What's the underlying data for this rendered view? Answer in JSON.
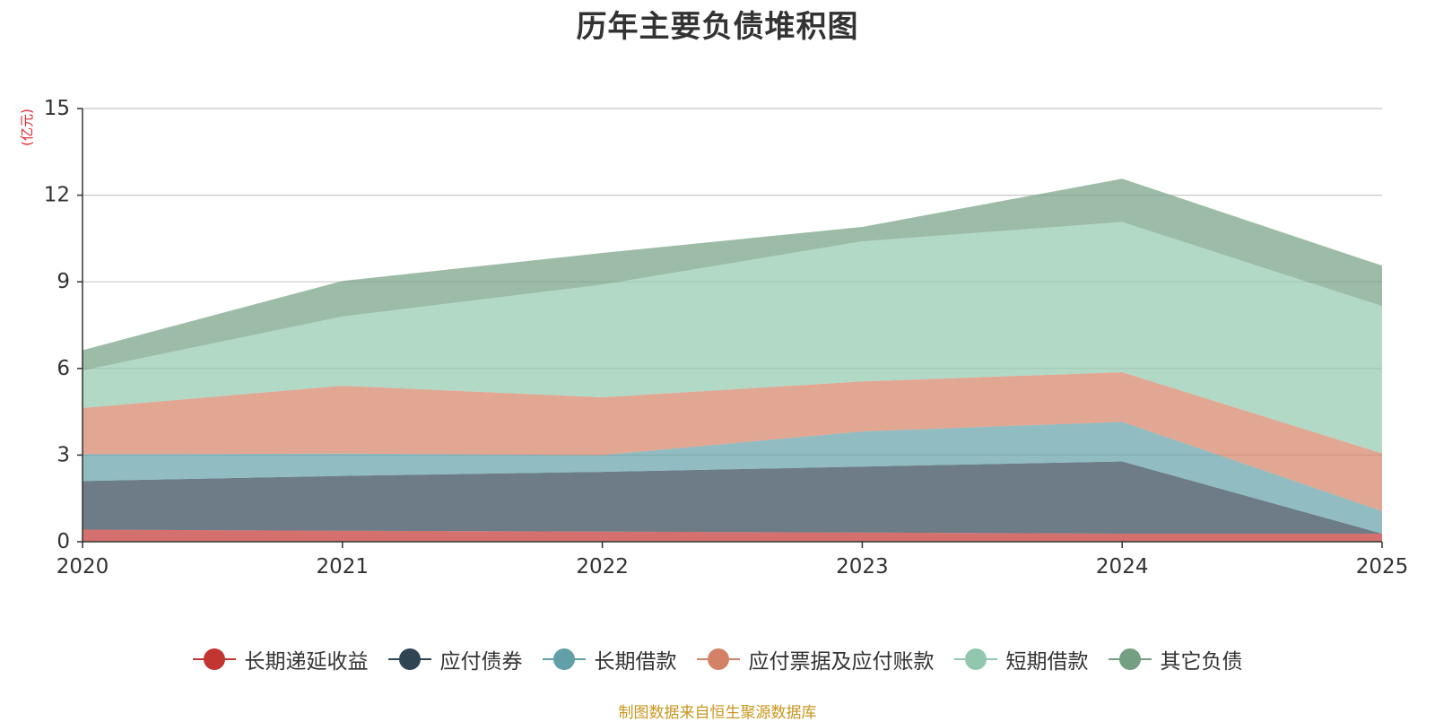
{
  "chart_data": {
    "type": "area",
    "stacked": true,
    "title": "历年主要负债堆积图",
    "ylabel": "(亿元)",
    "xlabel": "",
    "x": [
      "2020",
      "2021",
      "2022",
      "2023",
      "2024",
      "2025"
    ],
    "ylim": [
      0,
      15
    ],
    "yticks": [
      0,
      3,
      6,
      9,
      12,
      15
    ],
    "grid": true,
    "legend_position": "bottom",
    "series": [
      {
        "name": "长期递延收益",
        "color": "#c23531",
        "values": [
          0.42,
          0.38,
          0.35,
          0.32,
          0.28,
          0.28
        ]
      },
      {
        "name": "应付债券",
        "color": "#2f4554",
        "values": [
          1.68,
          1.9,
          2.07,
          2.28,
          2.5,
          0.0
        ]
      },
      {
        "name": "长期借款",
        "color": "#61a0a8",
        "values": [
          0.93,
          0.77,
          0.58,
          1.22,
          1.37,
          0.78
        ]
      },
      {
        "name": "应付票据及应付账款",
        "color": "#d48265",
        "values": [
          1.6,
          2.35,
          2.0,
          1.73,
          1.72,
          2.0
        ]
      },
      {
        "name": "短期借款",
        "color": "#91c7ae",
        "values": [
          1.3,
          2.4,
          3.9,
          4.85,
          5.2,
          5.1
        ]
      },
      {
        "name": "其它负债",
        "color": "#749f83",
        "values": [
          0.7,
          1.23,
          1.1,
          0.5,
          1.5,
          1.4
        ]
      }
    ]
  },
  "source_note": "制图数据来自恒生聚源数据库"
}
